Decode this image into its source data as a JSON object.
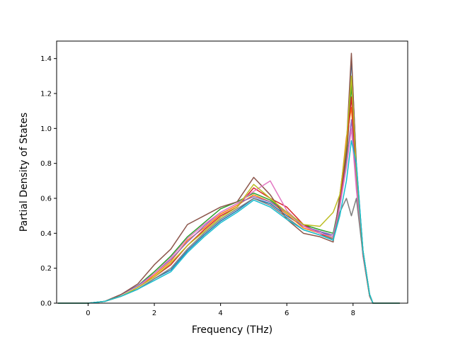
{
  "chart_data": {
    "type": "line",
    "title": "",
    "xlabel": "Frequency (THz)",
    "ylabel": "Partial Density of States",
    "xlim": [
      -0.95,
      9.65
    ],
    "ylim": [
      0,
      1.5
    ],
    "xticks": [
      0,
      2,
      4,
      6,
      8
    ],
    "yticks": [
      0.0,
      0.2,
      0.4,
      0.6,
      0.8,
      1.0,
      1.2,
      1.4
    ],
    "xtick_labels": [
      "0",
      "2",
      "4",
      "6",
      "8"
    ],
    "ytick_labels": [
      "0.0",
      "0.2",
      "0.4",
      "0.6",
      "0.8",
      "1.0",
      "1.2",
      "1.4"
    ],
    "grid": false,
    "legend": "none",
    "x": [
      -0.9,
      0.0,
      0.5,
      1.0,
      1.5,
      2.0,
      2.5,
      3.0,
      3.5,
      4.0,
      4.5,
      5.0,
      5.5,
      6.0,
      6.5,
      7.0,
      7.4,
      7.6,
      7.8,
      7.95,
      8.1,
      8.3,
      8.5,
      8.6,
      9.4
    ],
    "series": [
      {
        "color": "#1f77b4",
        "values": [
          0,
          0,
          0.01,
          0.04,
          0.08,
          0.14,
          0.19,
          0.3,
          0.39,
          0.47,
          0.53,
          0.6,
          0.57,
          0.5,
          0.44,
          0.41,
          0.38,
          0.55,
          0.85,
          1.4,
          0.8,
          0.3,
          0.05,
          0,
          0
        ]
      },
      {
        "color": "#ff7f0e",
        "values": [
          0,
          0,
          0.01,
          0.04,
          0.09,
          0.16,
          0.24,
          0.36,
          0.43,
          0.51,
          0.56,
          0.62,
          0.58,
          0.51,
          0.43,
          0.4,
          0.37,
          0.6,
          0.95,
          1.12,
          0.7,
          0.28,
          0.04,
          0,
          0
        ]
      },
      {
        "color": "#2ca02c",
        "values": [
          0,
          0,
          0.01,
          0.05,
          0.1,
          0.18,
          0.27,
          0.38,
          0.46,
          0.54,
          0.58,
          0.63,
          0.59,
          0.52,
          0.45,
          0.42,
          0.4,
          0.58,
          0.82,
          1.25,
          0.75,
          0.29,
          0.05,
          0,
          0
        ]
      },
      {
        "color": "#d62728",
        "values": [
          0,
          0,
          0.01,
          0.04,
          0.09,
          0.15,
          0.22,
          0.33,
          0.42,
          0.5,
          0.55,
          0.66,
          0.6,
          0.55,
          0.45,
          0.4,
          0.36,
          0.57,
          0.88,
          1.18,
          0.72,
          0.27,
          0.04,
          0,
          0
        ]
      },
      {
        "color": "#9467bd",
        "values": [
          0,
          0,
          0.01,
          0.05,
          0.1,
          0.17,
          0.25,
          0.35,
          0.44,
          0.52,
          0.57,
          0.61,
          0.58,
          0.52,
          0.44,
          0.41,
          0.39,
          0.56,
          0.8,
          1.05,
          0.68,
          0.28,
          0.05,
          0,
          0
        ]
      },
      {
        "color": "#8c564b",
        "values": [
          0,
          0,
          0.01,
          0.05,
          0.11,
          0.22,
          0.31,
          0.45,
          0.5,
          0.55,
          0.58,
          0.72,
          0.62,
          0.48,
          0.4,
          0.38,
          0.35,
          0.62,
          0.9,
          1.43,
          0.78,
          0.3,
          0.05,
          0,
          0
        ]
      },
      {
        "color": "#e377c2",
        "values": [
          0,
          0,
          0.01,
          0.04,
          0.09,
          0.17,
          0.26,
          0.37,
          0.45,
          0.52,
          0.57,
          0.64,
          0.7,
          0.53,
          0.44,
          0.4,
          0.38,
          0.55,
          0.78,
          1.0,
          0.65,
          0.27,
          0.05,
          0,
          0
        ]
      },
      {
        "color": "#7f7f7f",
        "values": [
          0,
          0,
          0.01,
          0.04,
          0.08,
          0.14,
          0.2,
          0.31,
          0.4,
          0.48,
          0.54,
          0.6,
          0.56,
          0.49,
          0.42,
          0.39,
          0.37,
          0.52,
          0.6,
          0.5,
          0.6,
          0.28,
          0.04,
          0,
          0
        ]
      },
      {
        "color": "#bcbd22",
        "values": [
          0,
          0,
          0.01,
          0.04,
          0.09,
          0.15,
          0.23,
          0.33,
          0.41,
          0.49,
          0.55,
          0.68,
          0.6,
          0.52,
          0.45,
          0.44,
          0.52,
          0.62,
          0.92,
          1.3,
          0.76,
          0.3,
          0.05,
          0,
          0
        ]
      },
      {
        "color": "#17becf",
        "values": [
          0,
          0,
          0.01,
          0.04,
          0.08,
          0.13,
          0.18,
          0.29,
          0.38,
          0.46,
          0.52,
          0.59,
          0.55,
          0.48,
          0.42,
          0.39,
          0.36,
          0.5,
          0.7,
          0.93,
          0.8,
          0.3,
          0.05,
          0,
          0
        ]
      }
    ]
  }
}
